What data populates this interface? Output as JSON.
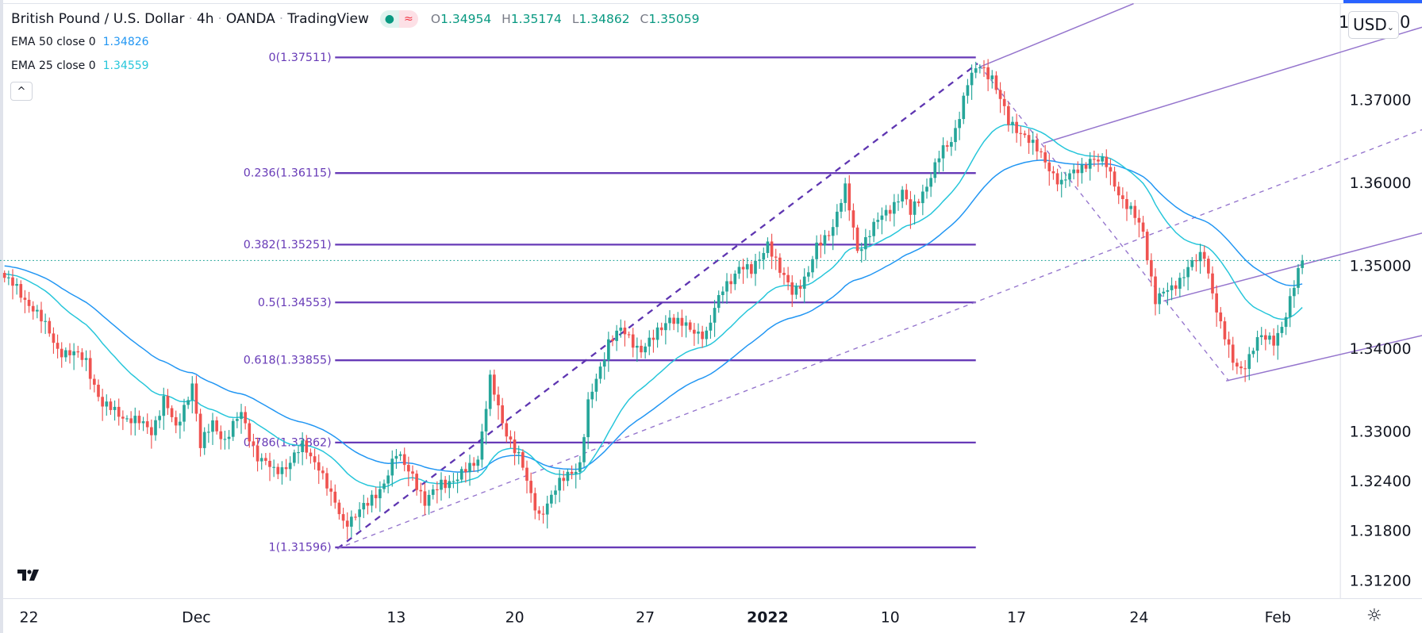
{
  "header": {
    "title": "British Pound / U.S. Dollar",
    "interval": "4h",
    "exchange": "OANDA",
    "source": "TradingView",
    "separator": "·",
    "market_status_icon": "green-dot-icon",
    "delay_icon": "approx-icon",
    "ohlc": {
      "o_label": "O",
      "o": "1.34954",
      "h_label": "H",
      "h": "1.35174",
      "l_label": "L",
      "l": "1.34862",
      "c_label": "C",
      "c": "1.35059"
    }
  },
  "indicators": [
    {
      "name": "EMA 50 close 0",
      "value": "1.34826",
      "color": "#2196f3",
      "length": 50
    },
    {
      "name": "EMA 25 close 0",
      "value": "1.34559",
      "color": "#26c6da",
      "length": 25
    }
  ],
  "controls": {
    "collapse_icon": "chevron-up-icon",
    "collapse_glyph": "^",
    "currency": "USD",
    "currency_chevron": "⌄",
    "axis_clip_left": "1",
    "axis_clip_right": "0",
    "settings_glyph": "☼"
  },
  "colors": {
    "up": "#26a69a",
    "down": "#ef5350",
    "fib": "#673ab7",
    "channel": "#9575cd",
    "last_price": "#26a69a"
  },
  "chart_data": {
    "type": "candlestick",
    "title": "British Pound / U.S. Dollar · 4h · OANDA",
    "bars": 319,
    "last_price": 1.35059,
    "ylim": [
      1.309,
      1.3795
    ],
    "y_ticks": [
      "1.37000",
      "1.36000",
      "1.35000",
      "1.34000",
      "1.33000",
      "1.32400",
      "1.31800",
      "1.31200"
    ],
    "x_ticks": [
      {
        "label": "22",
        "bar": 6,
        "bold": false
      },
      {
        "label": "Dec",
        "bar": 47,
        "bold": false
      },
      {
        "label": "13",
        "bar": 96,
        "bold": false
      },
      {
        "label": "20",
        "bar": 125,
        "bold": false
      },
      {
        "label": "27",
        "bar": 157,
        "bold": false
      },
      {
        "label": "2022",
        "bar": 187,
        "bold": true
      },
      {
        "label": "10",
        "bar": 217,
        "bold": false
      },
      {
        "label": "17",
        "bar": 248,
        "bold": false
      },
      {
        "label": "24",
        "bar": 278,
        "bold": false
      },
      {
        "label": "Feb",
        "bar": 312,
        "bold": false
      }
    ],
    "close_keypoints": [
      [
        0,
        1.3485
      ],
      [
        7,
        1.345
      ],
      [
        13,
        1.34
      ],
      [
        20,
        1.3385
      ],
      [
        24,
        1.333
      ],
      [
        31,
        1.3315
      ],
      [
        36,
        1.33
      ],
      [
        39,
        1.334
      ],
      [
        42,
        1.33
      ],
      [
        46,
        1.336
      ],
      [
        48,
        1.328
      ],
      [
        51,
        1.331
      ],
      [
        54,
        1.329
      ],
      [
        58,
        1.332
      ],
      [
        62,
        1.327
      ],
      [
        66,
        1.325
      ],
      [
        69,
        1.326
      ],
      [
        73,
        1.328
      ],
      [
        77,
        1.326
      ],
      [
        80,
        1.322
      ],
      [
        83,
        1.319
      ],
      [
        86,
        1.32
      ],
      [
        89,
        1.321
      ],
      [
        93,
        1.324
      ],
      [
        96,
        1.327
      ],
      [
        100,
        1.325
      ],
      [
        103,
        1.321
      ],
      [
        107,
        1.324
      ],
      [
        111,
        1.324
      ],
      [
        116,
        1.327
      ],
      [
        119,
        1.336
      ],
      [
        122,
        1.331
      ],
      [
        126,
        1.327
      ],
      [
        129,
        1.322
      ],
      [
        131,
        1.32
      ],
      [
        134,
        1.322
      ],
      [
        138,
        1.325
      ],
      [
        141,
        1.326
      ],
      [
        143,
        1.333
      ],
      [
        148,
        1.341
      ],
      [
        151,
        1.342
      ],
      [
        156,
        1.34
      ],
      [
        159,
        1.341
      ],
      [
        163,
        1.344
      ],
      [
        168,
        1.342
      ],
      [
        172,
        1.342
      ],
      [
        176,
        1.347
      ],
      [
        180,
        1.35
      ],
      [
        183,
        1.349
      ],
      [
        187,
        1.353
      ],
      [
        190,
        1.349
      ],
      [
        193,
        1.347
      ],
      [
        197,
        1.349
      ],
      [
        199,
        1.352
      ],
      [
        203,
        1.355
      ],
      [
        206,
        1.359
      ],
      [
        209,
        1.352
      ],
      [
        212,
        1.354
      ],
      [
        217,
        1.357
      ],
      [
        220,
        1.359
      ],
      [
        222,
        1.356
      ],
      [
        229,
        1.363
      ],
      [
        232,
        1.365
      ],
      [
        236,
        1.372
      ],
      [
        239,
        1.374
      ],
      [
        242,
        1.373
      ],
      [
        246,
        1.367
      ],
      [
        250,
        1.366
      ],
      [
        254,
        1.363
      ],
      [
        259,
        1.36
      ],
      [
        262,
        1.361
      ],
      [
        266,
        1.363
      ],
      [
        270,
        1.362
      ],
      [
        274,
        1.358
      ],
      [
        279,
        1.354
      ],
      [
        282,
        1.346
      ],
      [
        286,
        1.347
      ],
      [
        290,
        1.35
      ],
      [
        294,
        1.351
      ],
      [
        298,
        1.343
      ],
      [
        301,
        1.338
      ],
      [
        303,
        1.3375
      ],
      [
        307,
        1.341
      ],
      [
        311,
        1.341
      ],
      [
        314,
        1.344
      ],
      [
        318,
        1.35059
      ]
    ],
    "fibonacci": {
      "start_bar": 81,
      "end_bar": 238,
      "levels": [
        {
          "ratio": "0",
          "price": 1.37511,
          "label": "0(1.37511)"
        },
        {
          "ratio": "0.236",
          "price": 1.36115,
          "label": "0.236(1.36115)"
        },
        {
          "ratio": "0.382",
          "price": 1.35251,
          "label": "0.382(1.35251)"
        },
        {
          "ratio": "0.5",
          "price": 1.34553,
          "label": "0.5(1.34553)"
        },
        {
          "ratio": "0.618",
          "price": 1.33855,
          "label": "0.618(1.33855)"
        },
        {
          "ratio": "0.786",
          "price": 1.32862,
          "label": "0.786(1.32862)"
        },
        {
          "ratio": "1",
          "price": 1.31596,
          "label": "1(1.31596)"
        }
      ]
    }
  }
}
